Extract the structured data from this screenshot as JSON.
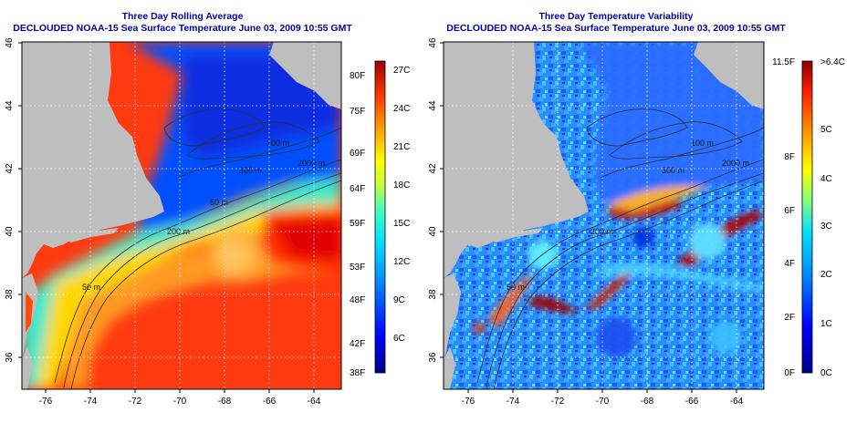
{
  "left_panel": {
    "title": "Three Day Rolling Average",
    "subtitle": "DECLOUDED NOAA-15 Sea Surface Temperature June 03, 2009 10:55 GMT",
    "lat_ticks": [
      "46",
      "44",
      "42",
      "40",
      "38",
      "36"
    ],
    "lon_ticks": [
      "-76",
      "-74",
      "-72",
      "-70",
      "-68",
      "-66",
      "-64"
    ],
    "contour_labels": [
      "100 m",
      "300 m",
      "2000 m",
      "50 m",
      "200 m",
      "50 m"
    ],
    "colorbar": {
      "unit_left": [
        "80F",
        "75F",
        "69F",
        "64F",
        "59F",
        "53F",
        "48F",
        "42F",
        "38F"
      ],
      "unit_right": [
        "27C",
        "24C",
        "21C",
        "18C",
        "15C",
        "12C",
        "9C",
        "6C"
      ]
    }
  },
  "right_panel": {
    "title": "Three Day Temperature Variability",
    "subtitle": "DECLOUDED NOAA-15 Sea Surface Temperature June 03, 2009 10:55 GMT",
    "lat_ticks": [
      "46",
      "44",
      "42",
      "40",
      "38",
      "36"
    ],
    "lon_ticks": [
      "-76",
      "-74",
      "-72",
      "-70",
      "-68",
      "-66",
      "-64"
    ],
    "contour_labels": [
      "100 m",
      "300 m",
      "2000 m",
      "200 m",
      "50 m"
    ],
    "colorbar": {
      "unit_left": [
        "11.5F",
        "8F",
        "6F",
        "4F",
        "2F",
        "0F"
      ],
      "unit_right": [
        ">6.4C",
        "5C",
        "4C",
        "3C",
        "2C",
        "1C",
        "0C"
      ]
    }
  },
  "colors": {
    "land": "#bebebe",
    "title": "#0000a0",
    "colormap": [
      "#00008b",
      "#0000ff",
      "#0080ff",
      "#00e0ff",
      "#40ffc0",
      "#c0ff40",
      "#ffff00",
      "#ffa000",
      "#ff4000",
      "#c00000",
      "#800000"
    ]
  }
}
